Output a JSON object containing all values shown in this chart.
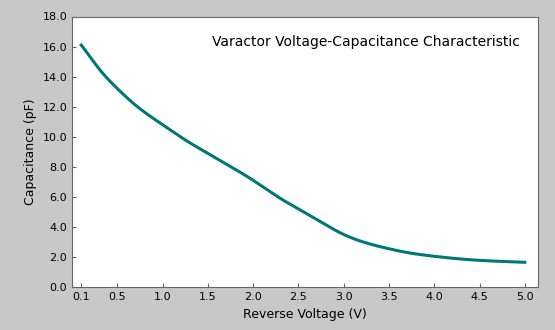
{
  "title": "Varactor Voltage-Capacitance Characteristic",
  "xlabel": "Reverse Voltage (V)",
  "ylabel": "Capacitance (pF)",
  "line_color": "#007878",
  "line_width": 2.2,
  "background_color": "#ffffff",
  "outer_bg": "#c8c8c8",
  "xlim": [
    0.0,
    5.15
  ],
  "ylim": [
    0.0,
    18.0
  ],
  "xticks": [
    0.1,
    0.5,
    1.0,
    1.5,
    2.0,
    2.5,
    3.0,
    3.5,
    4.0,
    4.5,
    5.0
  ],
  "yticks": [
    0.0,
    2.0,
    4.0,
    6.0,
    8.0,
    10.0,
    12.0,
    14.0,
    16.0,
    18.0
  ],
  "xtick_labels": [
    "0.1",
    "0.5",
    "1.0",
    "1.5",
    "2.0",
    "2.5",
    "3.0",
    "3.5",
    "4.0",
    "4.5",
    "5.0"
  ],
  "ytick_labels": [
    "0.0",
    "2.0",
    "4.0",
    "6.0",
    "8.0",
    "10.0",
    "12.0",
    "14.0",
    "16.0",
    "18.0"
  ],
  "title_fontsize": 10,
  "axis_label_fontsize": 9,
  "tick_fontsize": 8,
  "curve_x": [
    0.1,
    0.2,
    0.3,
    0.5,
    0.7,
    1.0,
    1.3,
    1.5,
    1.7,
    2.0,
    2.3,
    2.5,
    2.7,
    3.0,
    3.3,
    3.5,
    3.7,
    4.0,
    4.2,
    4.5,
    4.7,
    5.0
  ],
  "curve_y": [
    16.1,
    15.3,
    14.5,
    13.2,
    12.1,
    10.8,
    9.6,
    8.9,
    8.2,
    7.1,
    5.9,
    5.2,
    4.5,
    3.5,
    2.85,
    2.55,
    2.3,
    2.05,
    1.92,
    1.78,
    1.72,
    1.65
  ]
}
